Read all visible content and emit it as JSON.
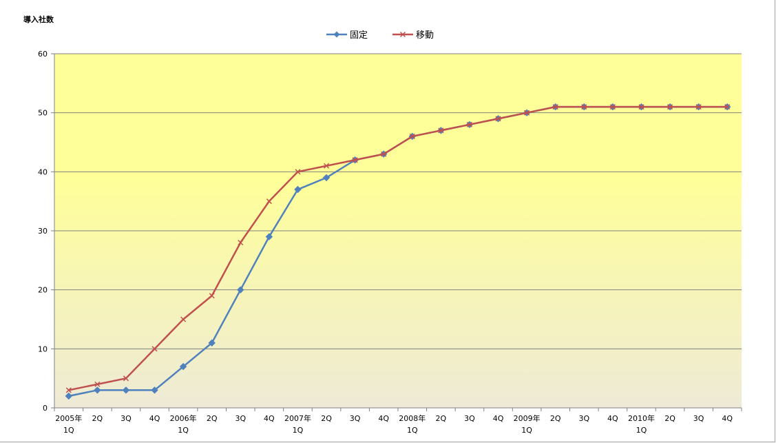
{
  "chart_data": {
    "type": "line",
    "ylabel": "導入社数",
    "xlabel": "",
    "ylim": [
      0,
      60
    ],
    "yticks": [
      "0",
      "10",
      "20",
      "30",
      "40",
      "50",
      "60"
    ],
    "grid": true,
    "legend_position": "top-center",
    "categories": [
      [
        "2005年",
        "1Q"
      ],
      [
        "2Q"
      ],
      [
        "3Q"
      ],
      [
        "4Q"
      ],
      [
        "2006年",
        "1Q"
      ],
      [
        "2Q"
      ],
      [
        "3Q"
      ],
      [
        "4Q"
      ],
      [
        "2007年",
        "1Q"
      ],
      [
        "2Q"
      ],
      [
        "3Q"
      ],
      [
        "4Q"
      ],
      [
        "2008年",
        "1Q"
      ],
      [
        "2Q"
      ],
      [
        "3Q"
      ],
      [
        "4Q"
      ],
      [
        "2009年",
        "1Q"
      ],
      [
        "2Q"
      ],
      [
        "3Q"
      ],
      [
        "4Q"
      ],
      [
        "2010年",
        "1Q"
      ],
      [
        "2Q"
      ],
      [
        "3Q"
      ],
      [
        "4Q"
      ]
    ],
    "series": [
      {
        "name": "固定",
        "color": "#4f81bd",
        "marker": "diamond",
        "values": [
          2,
          3,
          3,
          3,
          7,
          11,
          20,
          29,
          37,
          39,
          42,
          43,
          46,
          47,
          48,
          49,
          50,
          51,
          51,
          51,
          51,
          51,
          51,
          51
        ]
      },
      {
        "name": "移動",
        "color": "#c0504d",
        "marker": "x",
        "values": [
          3,
          4,
          5,
          10,
          15,
          19,
          28,
          35,
          40,
          41,
          42,
          43,
          46,
          47,
          48,
          49,
          50,
          51,
          51,
          51,
          51,
          51,
          51,
          51
        ]
      }
    ],
    "background_colors": {
      "top": "#ffff99",
      "bottom": "#eeead7"
    }
  }
}
